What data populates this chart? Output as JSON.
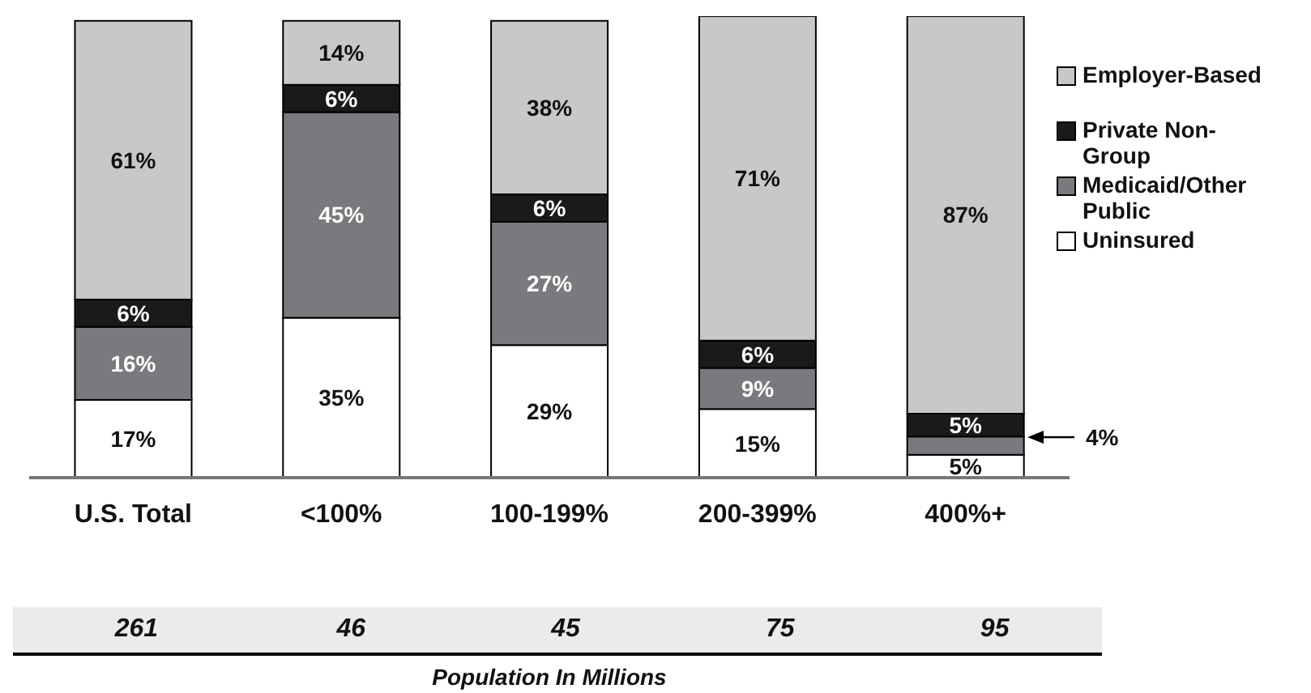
{
  "chart_data": {
    "type": "bar",
    "stacked": true,
    "categories": [
      "U.S. Total",
      "<100%",
      "100-199%",
      "200-399%",
      "400%+"
    ],
    "series": [
      {
        "name": "Uninsured",
        "color": "#ffffff",
        "values": [
          17,
          35,
          29,
          15,
          5
        ],
        "value_labels": [
          "17%",
          "35%",
          "29%",
          "15%",
          "5%"
        ]
      },
      {
        "name": "Medicaid/Other Public",
        "color": "#7a7a7e",
        "values": [
          16,
          45,
          27,
          9,
          4
        ],
        "value_labels": [
          "16%",
          "45%",
          "27%",
          "9%",
          null
        ]
      },
      {
        "name": "Private Non-Group",
        "color": "#1a1a1a",
        "values": [
          6,
          6,
          6,
          6,
          5
        ],
        "value_labels": [
          "6%",
          "6%",
          "6%",
          "6%",
          "5%"
        ]
      },
      {
        "name": "Employer-Based",
        "color": "#c8c8ca",
        "values": [
          61,
          14,
          38,
          71,
          87
        ],
        "value_labels": [
          "61%",
          "14%",
          "38%",
          "71%",
          "87%"
        ]
      }
    ],
    "ylim": [
      0,
      101
    ],
    "legend": "right",
    "annotations": [
      "261",
      "46",
      "45",
      "75",
      "95",
      "Population In Millions",
      "4%"
    ]
  }
}
